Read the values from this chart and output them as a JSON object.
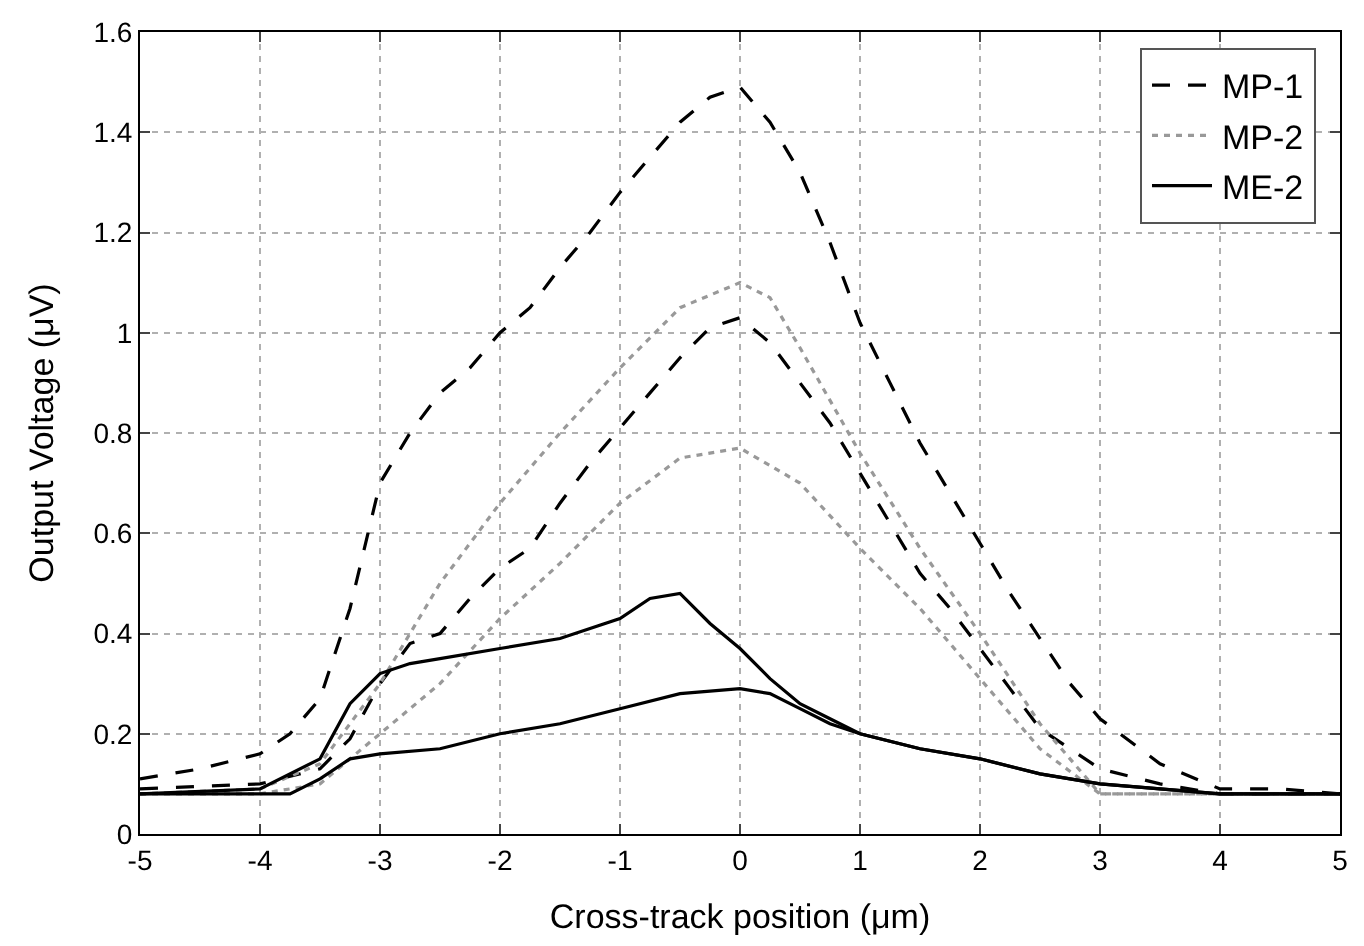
{
  "chart_data": {
    "type": "line",
    "xlabel": "Cross-track position (μm)",
    "ylabel": "Output Voltage (μV)",
    "xlim": [
      -5,
      5
    ],
    "xticks": [
      -5,
      -4,
      -3,
      -2,
      -1,
      0,
      1,
      2,
      3,
      4,
      5
    ],
    "ylim": [
      0,
      1.6
    ],
    "yticks": [
      0,
      0.2,
      0.4,
      0.6,
      0.8,
      1,
      1.2,
      1.4,
      1.6
    ],
    "grid": true,
    "legend": "top right",
    "marker": "none",
    "series": [
      {
        "name": "MP-1",
        "color": "#000000",
        "line_style": "dashed",
        "x": [
          -5,
          -4.5,
          -4,
          -3.75,
          -3.5,
          -3.25,
          -3,
          -2.75,
          -2.5,
          -2.25,
          -2,
          -1.75,
          -1.5,
          -1.25,
          -1,
          -0.75,
          -0.5,
          -0.25,
          0,
          0.25,
          0.5,
          0.75,
          1,
          1.25,
          1.5,
          1.75,
          2,
          2.25,
          2.5,
          2.75,
          3,
          3.5,
          4,
          4.5,
          5
        ],
        "values": [
          0.11,
          0.13,
          0.16,
          0.2,
          0.27,
          0.45,
          0.7,
          0.8,
          0.88,
          0.93,
          1.0,
          1.05,
          1.13,
          1.2,
          1.28,
          1.35,
          1.42,
          1.47,
          1.49,
          1.42,
          1.32,
          1.18,
          1.02,
          0.9,
          0.78,
          0.68,
          0.58,
          0.48,
          0.39,
          0.3,
          0.23,
          0.14,
          0.09,
          0.09,
          0.08
        ]
      },
      {
        "color": "#000000",
        "line_style": "dashed",
        "x": [
          -5,
          -4,
          -3.5,
          -3.25,
          -3,
          -2.75,
          -2.5,
          -2.25,
          -2,
          -1.75,
          -1.5,
          -1.25,
          -1,
          -0.75,
          -0.5,
          -0.25,
          0,
          0.25,
          0.5,
          0.75,
          1,
          1.25,
          1.5,
          1.75,
          2,
          2.25,
          2.5,
          2.75,
          3,
          3.5,
          4,
          5
        ],
        "values": [
          0.09,
          0.1,
          0.13,
          0.19,
          0.3,
          0.38,
          0.4,
          0.47,
          0.53,
          0.57,
          0.66,
          0.74,
          0.81,
          0.88,
          0.95,
          1.01,
          1.03,
          0.98,
          0.9,
          0.82,
          0.72,
          0.62,
          0.52,
          0.45,
          0.37,
          0.29,
          0.21,
          0.17,
          0.13,
          0.1,
          0.08,
          0.08
        ]
      },
      {
        "name": "MP-2",
        "color": "#999999",
        "line_style": "dotted",
        "x": [
          -5,
          -4,
          -3.5,
          -3,
          -2.5,
          -2,
          -1.5,
          -1,
          -0.5,
          0,
          0.25,
          0.5,
          1,
          1.5,
          2,
          2.5,
          3,
          3.5,
          4,
          5
        ],
        "values": [
          0.08,
          0.09,
          0.14,
          0.3,
          0.5,
          0.66,
          0.8,
          0.93,
          1.05,
          1.1,
          1.07,
          0.97,
          0.76,
          0.57,
          0.4,
          0.22,
          0.08,
          0.08,
          0.08,
          0.08
        ]
      },
      {
        "color": "#999999",
        "line_style": "dotted",
        "x": [
          -5,
          -4,
          -3.5,
          -3,
          -2.5,
          -2,
          -1.5,
          -1,
          -0.5,
          0,
          0.5,
          1,
          1.5,
          2,
          2.5,
          3,
          3.5,
          5
        ],
        "values": [
          0.08,
          0.08,
          0.1,
          0.2,
          0.3,
          0.43,
          0.54,
          0.66,
          0.75,
          0.77,
          0.7,
          0.57,
          0.45,
          0.31,
          0.17,
          0.08,
          0.08,
          0.08
        ]
      },
      {
        "name": "ME-2",
        "color": "#000000",
        "line_style": "solid",
        "x": [
          -5,
          -4,
          -3.5,
          -3.25,
          -3,
          -2.75,
          -2.5,
          -2,
          -1.5,
          -1,
          -0.75,
          -0.5,
          -0.25,
          0,
          0.25,
          0.5,
          0.75,
          1,
          1.5,
          2,
          2.5,
          3,
          3.5,
          4,
          5
        ],
        "values": [
          0.08,
          0.09,
          0.15,
          0.26,
          0.32,
          0.34,
          0.35,
          0.37,
          0.39,
          0.43,
          0.47,
          0.48,
          0.42,
          0.37,
          0.31,
          0.26,
          0.23,
          0.2,
          0.17,
          0.15,
          0.12,
          0.1,
          0.09,
          0.08,
          0.08
        ]
      },
      {
        "color": "#000000",
        "line_style": "solid",
        "x": [
          -5,
          -4,
          -3.75,
          -3.5,
          -3.25,
          -3,
          -2.5,
          -2,
          -1.5,
          -1,
          -0.5,
          0,
          0.25,
          0.5,
          0.75,
          1,
          1.5,
          2,
          2.5,
          3,
          3.5,
          4,
          5
        ],
        "values": [
          0.08,
          0.08,
          0.08,
          0.11,
          0.15,
          0.16,
          0.17,
          0.2,
          0.22,
          0.25,
          0.28,
          0.29,
          0.28,
          0.25,
          0.22,
          0.2,
          0.17,
          0.15,
          0.12,
          0.1,
          0.09,
          0.08,
          0.08
        ]
      }
    ]
  }
}
